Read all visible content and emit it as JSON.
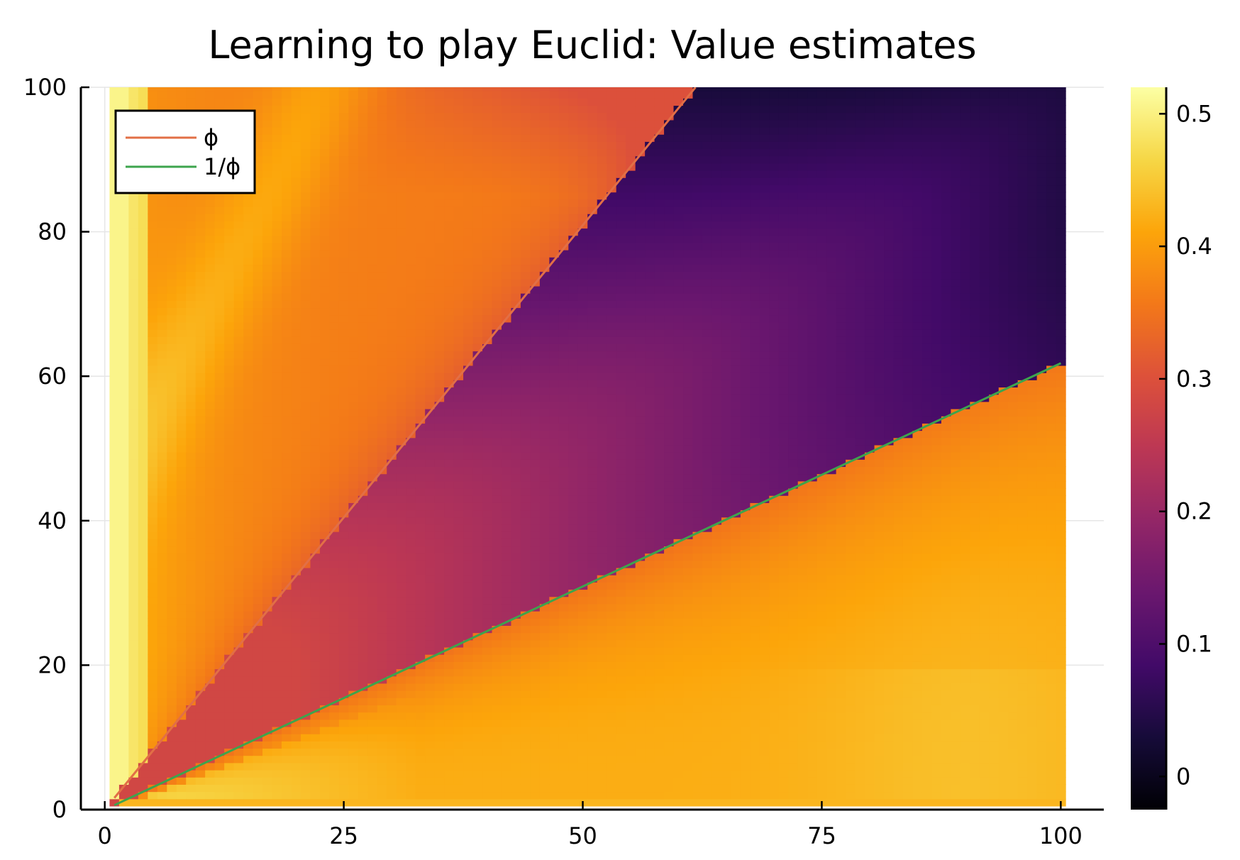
{
  "chart_data": {
    "type": "heatmap",
    "title": "Learning to play Euclid: Value estimates",
    "xlabel": "",
    "ylabel": "",
    "xlim": [
      -2.5,
      104.5
    ],
    "ylim": [
      0,
      100
    ],
    "x_ticks": [
      0,
      25,
      50,
      75,
      100
    ],
    "x_tick_labels": [
      "0",
      "25",
      "50",
      "75",
      "100"
    ],
    "y_ticks": [
      0,
      20,
      40,
      60,
      80,
      100
    ],
    "y_tick_labels": [
      "0",
      "20",
      "40",
      "60",
      "80",
      "100"
    ],
    "grid": true,
    "legend_position": "top-left",
    "heatmap": {
      "x_range": [
        1,
        100
      ],
      "y_range": [
        1,
        100
      ],
      "colormap": "inferno",
      "description_regions": [
        {
          "region": "y > phi*x (upper-left wedge)",
          "value_range": [
            0.35,
            0.5
          ]
        },
        {
          "region": "between y = x/phi and y = phi*x",
          "value_range": [
            0.0,
            0.27
          ]
        },
        {
          "region": "y < x/phi (lower-right wedge)",
          "value_range": [
            0.33,
            0.47
          ]
        }
      ]
    },
    "colorbar": {
      "limits": [
        -0.025,
        0.52
      ],
      "ticks": [
        0,
        0.1,
        0.2,
        0.3,
        0.4,
        0.5
      ],
      "tick_labels": [
        "0",
        "0.1",
        "0.2",
        "0.3",
        "0.4",
        "0.5"
      ]
    },
    "series": [
      {
        "name": "ϕ",
        "color": "#e26f46",
        "x": [
          1,
          61.8
        ],
        "y": [
          1.618,
          100
        ]
      },
      {
        "name": "1/ϕ",
        "color": "#3da44d",
        "x": [
          1,
          100
        ],
        "y": [
          0.618,
          61.8
        ]
      }
    ]
  }
}
